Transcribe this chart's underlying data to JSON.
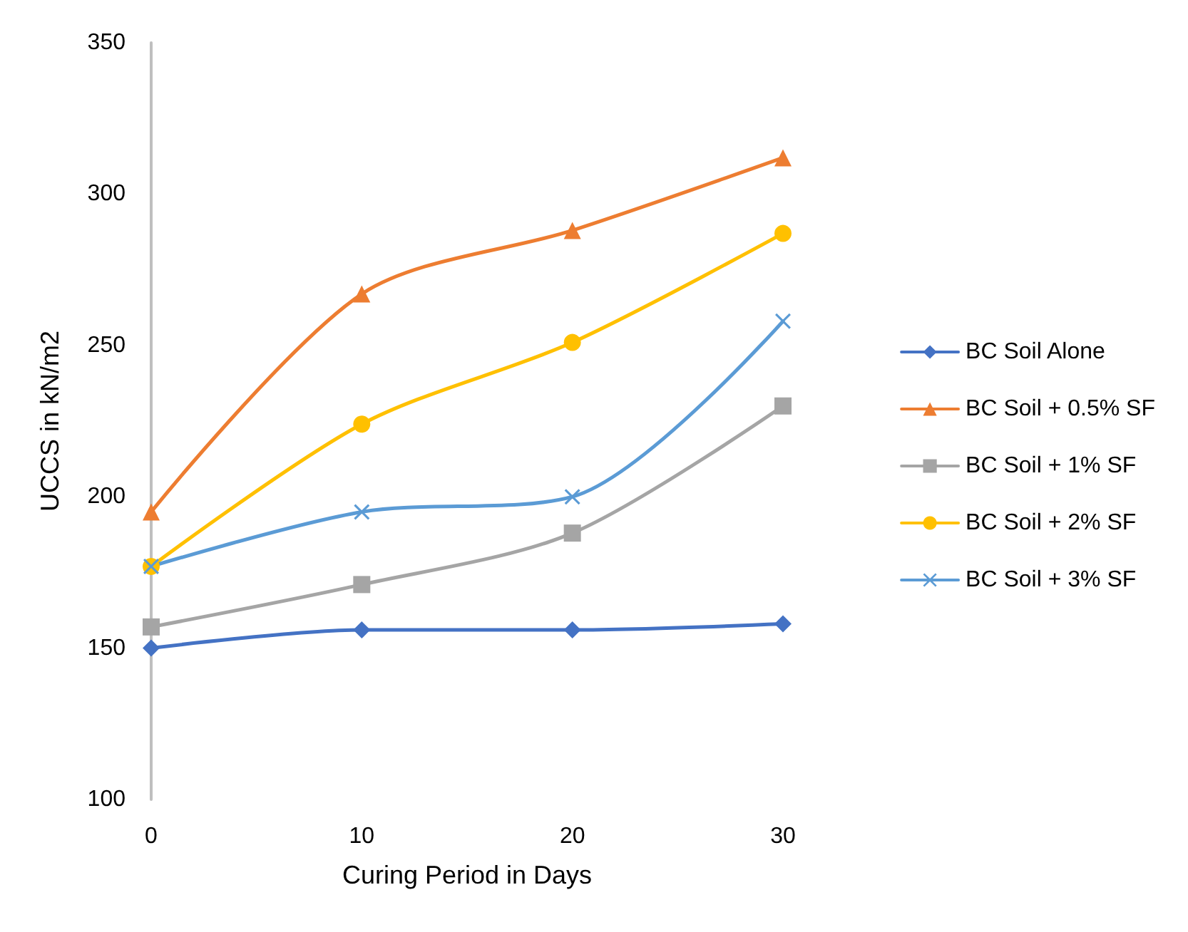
{
  "chart_data": {
    "type": "line",
    "xlabel": "Curing Period in Days",
    "ylabel": "UCCS in kN/m2",
    "x": [
      0,
      10,
      20,
      30
    ],
    "xlim": [
      0,
      30
    ],
    "xticks": [
      0,
      10,
      20,
      30
    ],
    "ylim": [
      100,
      350
    ],
    "yticks": [
      100,
      150,
      200,
      250,
      300,
      350
    ],
    "grid": false,
    "legend": "right",
    "series": [
      {
        "name": "BC Soil Alone",
        "color": "#4472c4",
        "marker": "diamond",
        "values": [
          150,
          156,
          156,
          158
        ]
      },
      {
        "name": "BC Soil + 0.5% SF",
        "color": "#ed7d31",
        "marker": "triangle",
        "values": [
          195,
          267,
          288,
          312
        ]
      },
      {
        "name": "BC Soil + 1% SF",
        "color": "#a5a5a5",
        "marker": "square",
        "values": [
          157,
          171,
          188,
          230
        ]
      },
      {
        "name": "BC Soil + 2% SF",
        "color": "#ffc000",
        "marker": "circle",
        "values": [
          177,
          224,
          251,
          287
        ]
      },
      {
        "name": "BC Soil + 3% SF",
        "color": "#5b9bd5",
        "marker": "cross",
        "values": [
          177,
          195,
          200,
          258
        ]
      }
    ]
  }
}
